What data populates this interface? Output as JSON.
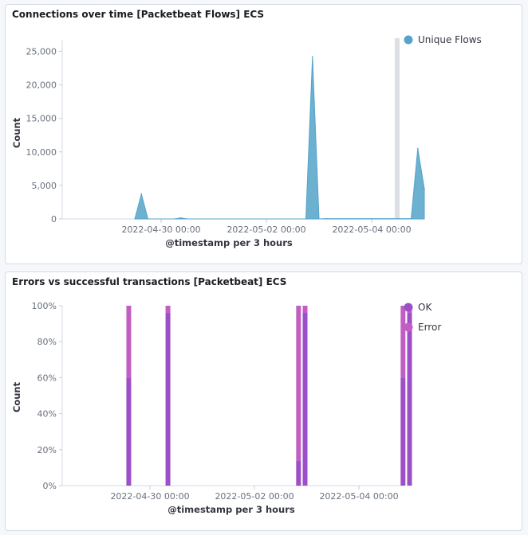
{
  "panels": [
    {
      "title": "Connections over time [Packetbeat Flows] ECS",
      "chart_data": {
        "type": "area",
        "ylabel": "Count",
        "xlabel": "@timestamp per 3 hours",
        "x_ticks": [
          "2022-04-30 00:00",
          "2022-05-02 00:00",
          "2022-05-04 00:00"
        ],
        "y_ticks": [
          "0",
          "5,000",
          "10,000",
          "15,000",
          "20,000",
          "25,000"
        ],
        "ylim": [
          0,
          26000
        ],
        "legend_position": "top-right",
        "series": [
          {
            "name": "Unique Flows",
            "color": "#54a3c9",
            "points": [
              [
                "2022-04-29 12:00",
                0
              ],
              [
                "2022-04-29 15:00",
                3700
              ],
              [
                "2022-04-29 18:00",
                0
              ],
              [
                "2022-04-30 06:00",
                0
              ],
              [
                "2022-04-30 09:00",
                150
              ],
              [
                "2022-04-30 12:00",
                0
              ],
              [
                "2022-05-02 18:00",
                0
              ],
              [
                "2022-05-02 21:00",
                24200
              ],
              [
                "2022-05-03 00:00",
                0
              ],
              [
                "2022-05-03 03:00",
                50
              ],
              [
                "2022-05-04 18:00",
                50
              ],
              [
                "2022-05-04 21:00",
                10500
              ],
              [
                "2022-05-05 00:00",
                4500
              ]
            ]
          }
        ]
      }
    },
    {
      "title": "Errors vs successful transactions [Packetbeat] ECS",
      "chart_data": {
        "type": "bar",
        "stacking": "percentage",
        "ylabel": "Count",
        "xlabel": "@timestamp per 3 hours",
        "x_ticks": [
          "2022-04-30 00:00",
          "2022-05-02 00:00",
          "2022-05-04 00:00"
        ],
        "y_ticks": [
          "0%",
          "20%",
          "40%",
          "60%",
          "80%",
          "100%"
        ],
        "legend_position": "top-right",
        "series_colors": {
          "OK": "#9c4fc7",
          "Error": "#c25ec3"
        },
        "legend": [
          "OK",
          "Error"
        ],
        "bars": [
          {
            "x": "2022-04-29 15:00",
            "ok_pct": 60,
            "error_pct": 40
          },
          {
            "x": "2022-04-30 09:00",
            "ok_pct": 96,
            "error_pct": 4
          },
          {
            "x": "2022-05-02 21:00",
            "ok_pct": 14,
            "error_pct": 86
          },
          {
            "x": "2022-05-03 00:00",
            "ok_pct": 96,
            "error_pct": 4
          },
          {
            "x": "2022-05-04 21:00",
            "ok_pct": 60,
            "error_pct": 40
          },
          {
            "x": "2022-05-05 00:00",
            "ok_pct": 96,
            "error_pct": 4
          }
        ]
      }
    }
  ]
}
